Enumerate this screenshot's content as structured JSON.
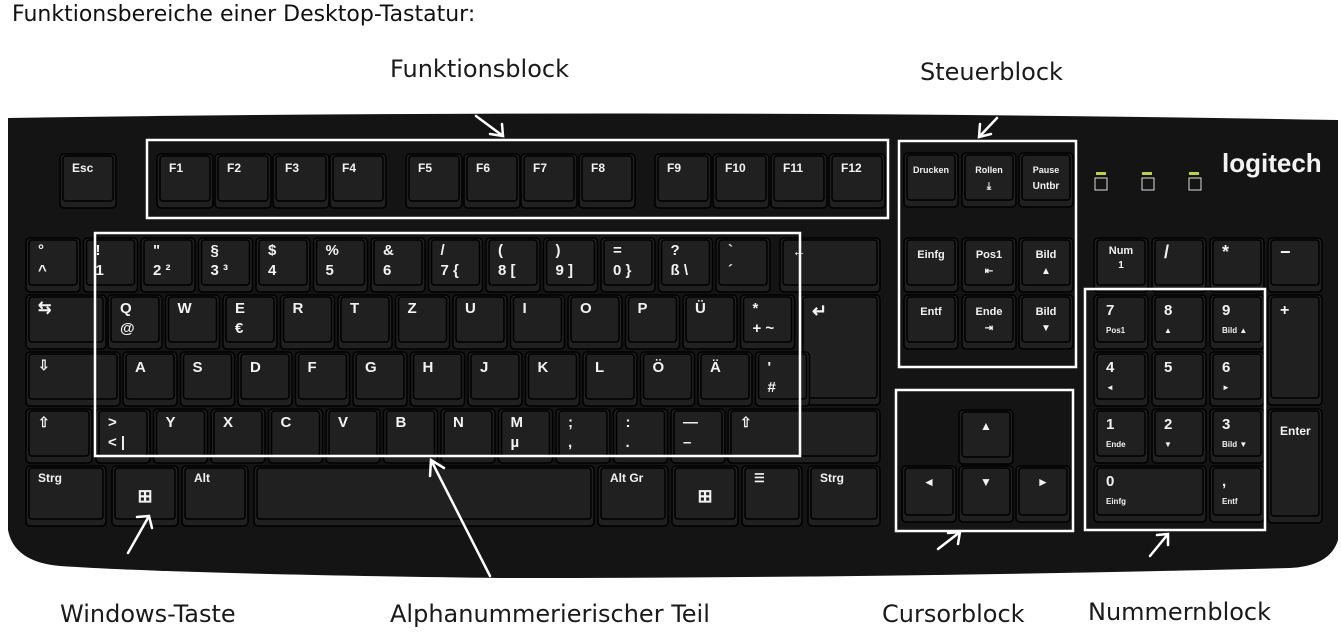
{
  "title": "Funktionsbereiche einer Desktop-Tastatur:",
  "labels": {
    "funktionsblock": "Funktionsblock",
    "steuerblock": "Steuerblock",
    "windows": "Windows-Taste",
    "alpha": "Alphanummerierischer Teil",
    "cursor": "Cursorblock",
    "nummern": "Nummernblock"
  },
  "brand": "logitech",
  "keys": {
    "esc": "Esc",
    "f": [
      "F1",
      "F2",
      "F3",
      "F4",
      "F5",
      "F6",
      "F7",
      "F8",
      "F9",
      "F10",
      "F11",
      "F12"
    ],
    "ctrl_top": [
      {
        "t": "Drucken",
        "b": ""
      },
      {
        "t": "Rollen",
        "b": "⤓"
      },
      {
        "t": "Pause",
        "b": "Untbr"
      }
    ],
    "ctrl_mid": [
      {
        "t": "Einfg",
        "b": ""
      },
      {
        "t": "Pos1",
        "b": "⇤"
      },
      {
        "t": "Bild",
        "b": "▲"
      }
    ],
    "ctrl_bot": [
      {
        "t": "Entf",
        "b": ""
      },
      {
        "t": "Ende",
        "b": "⇥"
      },
      {
        "t": "Bild",
        "b": "▼"
      }
    ],
    "row1": [
      {
        "t": "°",
        "b": "^"
      },
      {
        "t": "!",
        "b": "1"
      },
      {
        "t": "\"",
        "b": "2 ²"
      },
      {
        "t": "§",
        "b": "3 ³"
      },
      {
        "t": "$",
        "b": "4"
      },
      {
        "t": "%",
        "b": "5"
      },
      {
        "t": "&",
        "b": "6"
      },
      {
        "t": "/",
        "b": "7 {"
      },
      {
        "t": "(",
        "b": "8 ["
      },
      {
        "t": ")",
        "b": "9 ]"
      },
      {
        "t": "=",
        "b": "0 }"
      },
      {
        "t": "?",
        "b": "ß \\"
      },
      {
        "t": "`",
        "b": "´"
      },
      {
        "t": "←",
        "b": ""
      }
    ],
    "row2": [
      {
        "t": "⇆",
        "b": ""
      },
      {
        "t": "Q",
        "b": "@"
      },
      {
        "t": "W",
        "b": ""
      },
      {
        "t": "E",
        "b": "€"
      },
      {
        "t": "R",
        "b": ""
      },
      {
        "t": "T",
        "b": ""
      },
      {
        "t": "Z",
        "b": ""
      },
      {
        "t": "U",
        "b": ""
      },
      {
        "t": "I",
        "b": ""
      },
      {
        "t": "O",
        "b": ""
      },
      {
        "t": "P",
        "b": ""
      },
      {
        "t": "Ü",
        "b": ""
      },
      {
        "t": "*",
        "b": "+ ~"
      },
      {
        "t": "↵",
        "b": ""
      }
    ],
    "row3": [
      {
        "t": "⇩",
        "b": ""
      },
      {
        "t": "A",
        "b": ""
      },
      {
        "t": "S",
        "b": ""
      },
      {
        "t": "D",
        "b": ""
      },
      {
        "t": "F",
        "b": ""
      },
      {
        "t": "G",
        "b": ""
      },
      {
        "t": "H",
        "b": ""
      },
      {
        "t": "J",
        "b": ""
      },
      {
        "t": "K",
        "b": ""
      },
      {
        "t": "L",
        "b": ""
      },
      {
        "t": "Ö",
        "b": ""
      },
      {
        "t": "Ä",
        "b": ""
      },
      {
        "t": "'",
        "b": "#"
      }
    ],
    "row4": [
      {
        "t": "⇧",
        "b": ""
      },
      {
        "t": ">",
        "b": "< |"
      },
      {
        "t": "Y",
        "b": ""
      },
      {
        "t": "X",
        "b": ""
      },
      {
        "t": "C",
        "b": ""
      },
      {
        "t": "V",
        "b": ""
      },
      {
        "t": "B",
        "b": ""
      },
      {
        "t": "N",
        "b": ""
      },
      {
        "t": "M",
        "b": "µ"
      },
      {
        "t": ";",
        "b": ","
      },
      {
        "t": ":",
        "b": "."
      },
      {
        "t": "—",
        "b": "–"
      },
      {
        "t": "⇧",
        "b": ""
      }
    ],
    "row5": [
      {
        "t": "Strg",
        "b": ""
      },
      {
        "t": "⊞",
        "b": ""
      },
      {
        "t": "Alt",
        "b": ""
      },
      {
        "t": "",
        "b": ""
      },
      {
        "t": "Alt Gr",
        "b": ""
      },
      {
        "t": "⊞",
        "b": ""
      },
      {
        "t": "☰",
        "b": ""
      },
      {
        "t": "Strg",
        "b": ""
      }
    ],
    "cursor": [
      "▲",
      "◄",
      "▼",
      "►"
    ],
    "num": [
      {
        "t": "Num",
        "b": "1"
      },
      {
        "t": "/",
        "b": ""
      },
      {
        "t": "*",
        "b": ""
      },
      {
        "t": "−",
        "b": ""
      },
      {
        "t": "7",
        "b": "Pos1"
      },
      {
        "t": "8",
        "b": "▲"
      },
      {
        "t": "9",
        "b": "Bild ▲"
      },
      {
        "t": "+",
        "b": ""
      },
      {
        "t": "4",
        "b": "◄"
      },
      {
        "t": "5",
        "b": ""
      },
      {
        "t": "6",
        "b": "►"
      },
      {
        "t": "1",
        "b": "Ende"
      },
      {
        "t": "2",
        "b": "▼"
      },
      {
        "t": "3",
        "b": "Bild ▼"
      },
      {
        "t": "Enter",
        "b": ""
      },
      {
        "t": "0",
        "b": "Einfg"
      },
      {
        "t": ",",
        "b": "Entf"
      }
    ]
  }
}
